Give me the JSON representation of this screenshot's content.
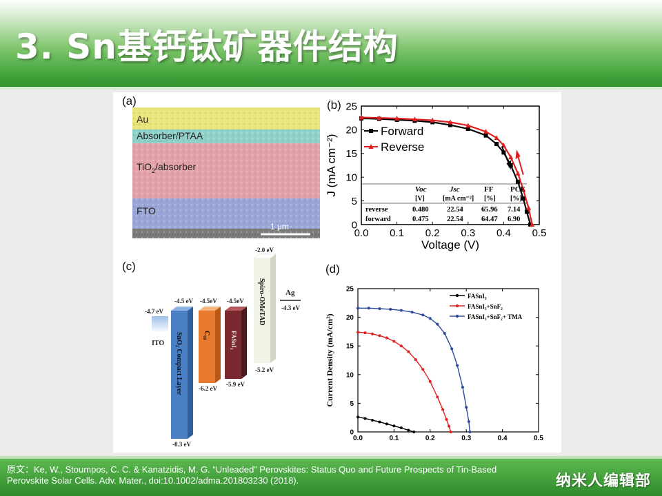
{
  "slide": {
    "title": "3. Sn基钙钛矿器件结构",
    "citation": "原文：Ke, W., Stoumpos, C. C. & Kanatzidis, M. G. “Unleaded” Perovskites: Status Quo and Future Prospects of Tin-Based Perovskite Solar Cells. Adv. Mater., doi:10.1002/adma.201803230 (2018).",
    "brand": "纳米人编辑部"
  },
  "panel_a": {
    "label": "(a)",
    "layers": [
      "Au",
      "Absorber/PTAA",
      "TiO",
      "2",
      "/absorber",
      "FTO"
    ],
    "scale_bar": "1 μm",
    "colors": {
      "au": "#e8e57a",
      "ptaa": "#8fd1c8",
      "tio2": "#e3a2a8",
      "fto": "#9aa6d6",
      "substrate": "#7a7a7a"
    }
  },
  "panel_c": {
    "label": "(c)",
    "ito": {
      "name": "ITO",
      "level": "-4.7 eV"
    },
    "sno2": {
      "name": "SnO₂ Compact Layer",
      "top": "-4.5 eV",
      "bottom": "-8.3 eV",
      "color": "#4a7fc4"
    },
    "c60": {
      "name": "C₆₀",
      "top": "-4.5eV",
      "bottom": "-6.2 eV",
      "color": "#e87a2e"
    },
    "fasni3": {
      "name": "FASnI₃",
      "top": "-4.5eV",
      "bottom": "-5.9 eV",
      "color": "#7a2a2e"
    },
    "spiro": {
      "name": "Spiro-OMeTAD",
      "top": "-2.0 eV",
      "bottom": "-5.2 eV",
      "color": "#f1f1e6"
    },
    "ag": {
      "name": "Ag",
      "level": "-4.3 eV"
    }
  },
  "chart_data": [
    {
      "type": "line",
      "panel": "(b)",
      "xlabel": "Voltage (V)",
      "ylabel": "J (mA cm⁻²)",
      "xlim": [
        0.0,
        0.5
      ],
      "ylim": [
        0,
        25
      ],
      "xticks": [
        "0.0",
        "0.1",
        "0.2",
        "0.3",
        "0.4",
        "0.5"
      ],
      "yticks": [
        "0",
        "5",
        "10",
        "15",
        "20",
        "25"
      ],
      "legend": "top-left",
      "series": [
        {
          "name": "Forward",
          "color": "#000000",
          "marker": "square",
          "x": [
            0.0,
            0.05,
            0.1,
            0.15,
            0.2,
            0.25,
            0.3,
            0.35,
            0.38,
            0.4,
            0.42,
            0.44,
            0.455,
            0.465,
            0.475
          ],
          "y": [
            22.4,
            22.3,
            22.1,
            21.9,
            21.6,
            21.0,
            20.2,
            18.8,
            17.0,
            15.2,
            12.5,
            9.0,
            5.5,
            2.7,
            0.0
          ]
        },
        {
          "name": "Reverse",
          "color": "#e02020",
          "marker": "triangle",
          "x": [
            0.0,
            0.05,
            0.1,
            0.15,
            0.2,
            0.25,
            0.3,
            0.35,
            0.38,
            0.4,
            0.42,
            0.44,
            0.455,
            0.47,
            0.48
          ],
          "y": [
            22.6,
            22.5,
            22.4,
            22.2,
            22.0,
            21.6,
            20.9,
            19.6,
            18.3,
            16.7,
            14.2,
            10.8,
            7.4,
            3.5,
            0.0
          ]
        }
      ],
      "table": {
        "headers": [
          "",
          "Voc",
          "Jsc",
          "FF",
          "PCE"
        ],
        "units": [
          "",
          "[V]",
          "[mA cm⁻²]",
          "[%]",
          "[%]"
        ],
        "rows": [
          [
            "reverse",
            "0.480",
            "22.54",
            "65.96",
            "7.14"
          ],
          [
            "forward",
            "0.475",
            "22.54",
            "64.47",
            "6.90"
          ]
        ]
      }
    },
    {
      "type": "line",
      "panel": "(d)",
      "xlabel": "",
      "ylabel": "Current Density (mA/cm²)",
      "xlim": [
        0.0,
        0.5
      ],
      "ylim": [
        0,
        25
      ],
      "xticks": [
        "0.0",
        "0.1",
        "0.2",
        "0.3",
        "0.4",
        "0.5"
      ],
      "yticks": [
        "0",
        "5",
        "10",
        "15",
        "20",
        "25"
      ],
      "legend": "top-right",
      "series": [
        {
          "name": "FASnI₃",
          "color": "#000000",
          "x": [
            0.0,
            0.02,
            0.04,
            0.06,
            0.08,
            0.1,
            0.12,
            0.14,
            0.155
          ],
          "y": [
            2.6,
            2.35,
            2.05,
            1.75,
            1.4,
            1.05,
            0.7,
            0.3,
            0.0
          ]
        },
        {
          "name": "FASnI₃+SnF₂",
          "color": "#e02020",
          "x": [
            0.0,
            0.02,
            0.04,
            0.06,
            0.08,
            0.1,
            0.12,
            0.14,
            0.16,
            0.18,
            0.2,
            0.22,
            0.235,
            0.245,
            0.252,
            0.257
          ],
          "y": [
            17.4,
            17.3,
            17.1,
            16.8,
            16.4,
            15.8,
            15.0,
            14.0,
            12.6,
            10.9,
            8.8,
            6.1,
            3.9,
            2.2,
            1.0,
            0.0
          ]
        },
        {
          "name": "FASnI₃+SnF₂+ TMA",
          "color": "#2a4b9a",
          "x": [
            0.0,
            0.03,
            0.06,
            0.09,
            0.12,
            0.15,
            0.18,
            0.2,
            0.22,
            0.24,
            0.26,
            0.275,
            0.29,
            0.3,
            0.307,
            0.31
          ],
          "y": [
            21.6,
            21.6,
            21.5,
            21.4,
            21.2,
            20.9,
            20.4,
            19.8,
            18.8,
            17.2,
            14.5,
            11.6,
            7.8,
            4.3,
            1.8,
            0.0
          ]
        }
      ]
    }
  ]
}
